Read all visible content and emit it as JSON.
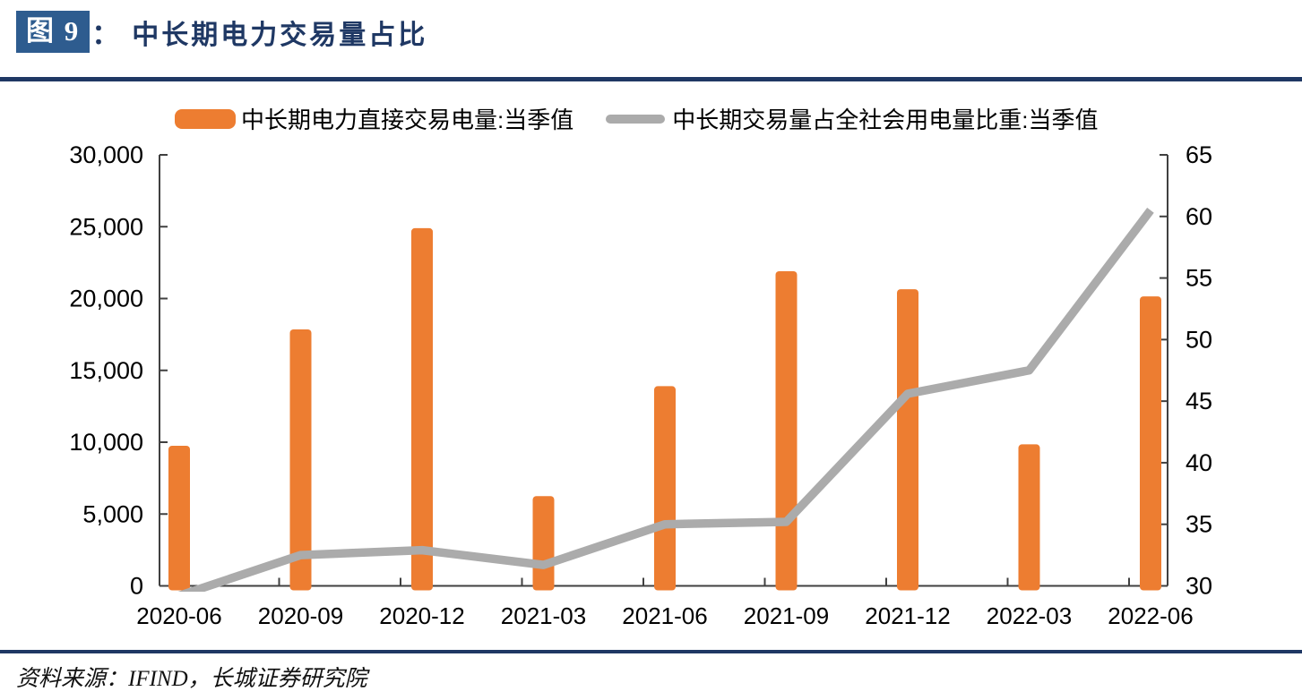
{
  "header": {
    "figure_label": "图 9",
    "colon": "：",
    "title": "中长期电力交易量占比"
  },
  "legend": [
    {
      "label": "中长期电力直接交易电量:当季值",
      "type": "bar",
      "color": "#ED7D31"
    },
    {
      "label": "中长期交易量占全社会用电量比重:当季值",
      "type": "line",
      "color": "#ABABAB"
    }
  ],
  "chart_data": {
    "type": "bar",
    "subtype": "bar+line dual axis",
    "categories": [
      "2020-06",
      "2020-09",
      "2020-12",
      "2021-03",
      "2021-06",
      "2021-09",
      "2021-12",
      "2022-03",
      "2022-06"
    ],
    "series": [
      {
        "name": "中长期电力直接交易电量:当季值",
        "type": "bar",
        "axis": "left",
        "color": "#ED7D31",
        "values": [
          9750,
          17850,
          24900,
          6250,
          13900,
          21900,
          20650,
          9850,
          20150
        ]
      },
      {
        "name": "中长期交易量占全社会用电量比重:当季值",
        "type": "line",
        "axis": "right",
        "color": "#ABABAB",
        "values": [
          29.2,
          32.5,
          32.9,
          31.7,
          35.0,
          35.2,
          45.6,
          47.5,
          60.5
        ]
      }
    ],
    "left_axis": {
      "min": 0,
      "max": 30000,
      "step": 5000,
      "tick_labels": [
        "0",
        "5,000",
        "10,000",
        "15,000",
        "20,000",
        "25,000",
        "30,000"
      ]
    },
    "right_axis": {
      "min": 30,
      "max": 65,
      "step": 5,
      "tick_labels": [
        "30",
        "35",
        "40",
        "45",
        "50",
        "55",
        "60",
        "65"
      ]
    },
    "grid": false,
    "legend_position": "top",
    "axis_color": "#404040",
    "label_color": "#000000"
  },
  "footer": {
    "source": "资料来源：IFIND，长城证券研究院"
  }
}
